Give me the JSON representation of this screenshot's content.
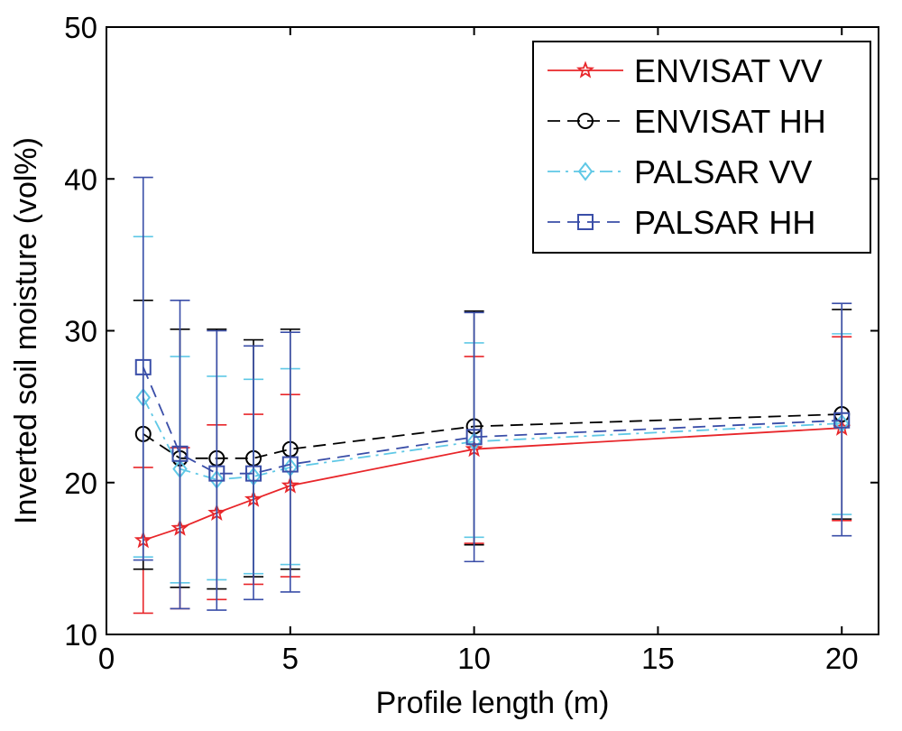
{
  "chart_data": {
    "type": "line",
    "title": "",
    "xlabel": "Profile length (m)",
    "ylabel": "Inverted soil moisture (vol%)",
    "xlim": [
      0,
      21
    ],
    "ylim": [
      10,
      50
    ],
    "xticks": [
      0,
      5,
      10,
      15,
      20
    ],
    "yticks": [
      10,
      20,
      30,
      40,
      50
    ],
    "grid": false,
    "legend_position": "top-right",
    "x": [
      1,
      2,
      3,
      4,
      5,
      10,
      20
    ],
    "series": [
      {
        "name": "ENVISAT VV",
        "color": "#e8262a",
        "line_style": "solid",
        "marker": "star",
        "values": [
          16.2,
          17.0,
          18.0,
          18.9,
          19.8,
          22.2,
          23.6
        ],
        "err_low": [
          11.4,
          11.7,
          12.3,
          13.3,
          13.8,
          16.0,
          17.5
        ],
        "err_high": [
          21.0,
          22.3,
          23.8,
          24.5,
          25.8,
          28.3,
          29.6
        ]
      },
      {
        "name": "ENVISAT HH",
        "color": "#000000",
        "line_style": "dashed",
        "marker": "circle",
        "values": [
          23.2,
          21.6,
          21.6,
          21.6,
          22.2,
          23.7,
          24.5
        ],
        "err_low": [
          14.3,
          13.1,
          13.0,
          13.8,
          14.3,
          15.9,
          17.6
        ],
        "err_high": [
          32.0,
          30.1,
          30.1,
          29.4,
          30.1,
          31.3,
          31.4
        ]
      },
      {
        "name": "PALSAR VV",
        "color": "#5fc8e6",
        "line_style": "dashdot",
        "marker": "diamond",
        "values": [
          25.6,
          20.9,
          20.2,
          20.4,
          21.0,
          22.7,
          23.9
        ],
        "err_low": [
          15.1,
          13.4,
          13.6,
          14.0,
          14.6,
          16.4,
          17.9
        ],
        "err_high": [
          36.2,
          28.3,
          27.0,
          26.8,
          27.5,
          29.2,
          29.8
        ]
      },
      {
        "name": "PALSAR HH",
        "color": "#3a4ea8",
        "line_style": "dashed",
        "marker": "square",
        "values": [
          27.6,
          21.9,
          20.6,
          20.6,
          21.2,
          23.0,
          24.1
        ],
        "err_low": [
          14.9,
          11.7,
          11.6,
          12.3,
          12.8,
          14.8,
          16.5
        ],
        "err_high": [
          40.1,
          32.0,
          30.0,
          29.0,
          29.9,
          31.2,
          31.8
        ]
      }
    ]
  }
}
